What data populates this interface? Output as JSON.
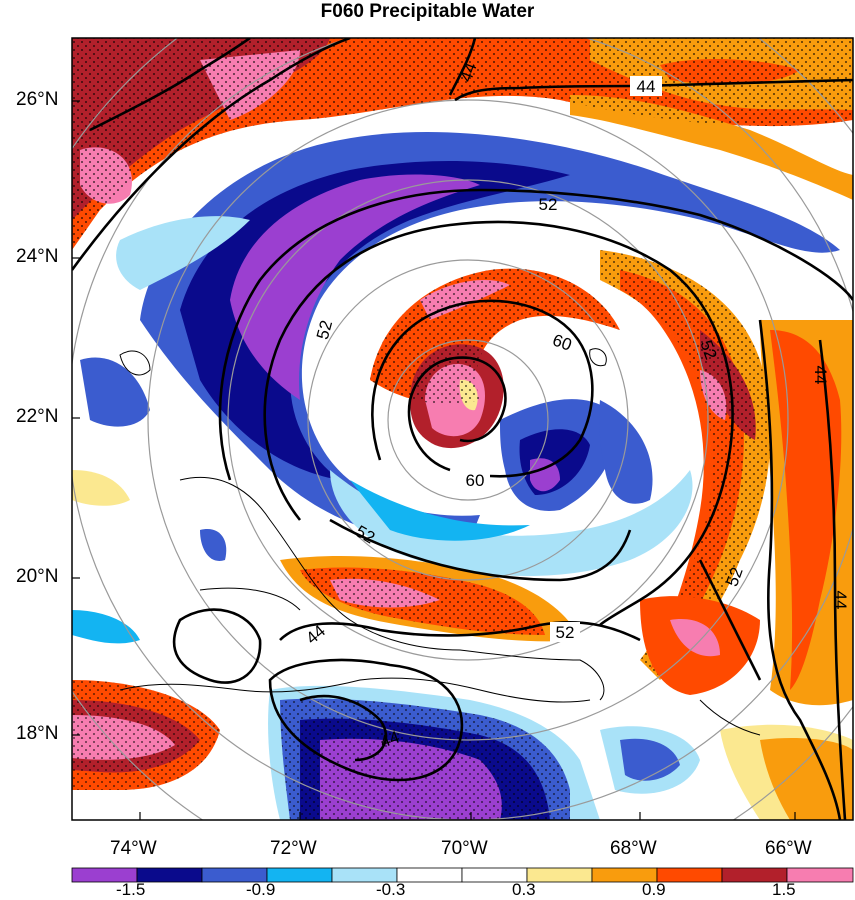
{
  "title": "F060 Precipitable Water",
  "map": {
    "lat_labels": [
      "26°N",
      "24°N",
      "22°N",
      "20°N",
      "18°N"
    ],
    "lon_labels": [
      "74°W",
      "72°W",
      "70°W",
      "68°W",
      "66°W"
    ],
    "contour_labels": [
      "44",
      "44",
      "52",
      "52",
      "60",
      "60",
      "52",
      "52",
      "52",
      "44",
      "44",
      "52",
      "44"
    ],
    "storm_center": {
      "lon": "70.5°W",
      "lat": "22.3°N"
    }
  },
  "colorbar": {
    "labels": [
      "-1.5",
      "-0.9",
      "-0.3",
      "0.3",
      "0.9",
      "1.5"
    ],
    "colors": [
      "#9b3fd0",
      "#0a0a8c",
      "#3b5ccf",
      "#13b4f2",
      "#a9e2f8",
      "#ffffff",
      "#ffffff",
      "#fbe890",
      "#f99c0d",
      "#ff4a00",
      "#b2202b",
      "#f77db0"
    ]
  }
}
